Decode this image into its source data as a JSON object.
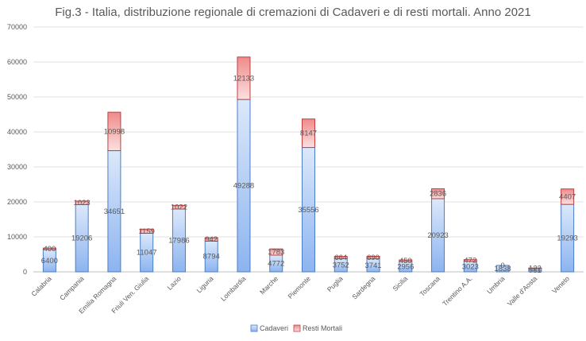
{
  "chart_data": {
    "type": "bar",
    "stacked": true,
    "title": "Fig.3 - Italia, distribuzione regionale di cremazioni di Cadaveri e di resti mortali. Anno 2021",
    "xlabel": "",
    "ylabel": "",
    "ylim": [
      0,
      70000
    ],
    "yticks": [
      0,
      10000,
      20000,
      30000,
      40000,
      50000,
      60000,
      70000
    ],
    "grid": true,
    "legend": "bottom-center",
    "categories": [
      "Calabria",
      "Campania",
      "Emilia Romagna",
      "Friuli Ven. Giulia",
      "Lazio",
      "Liguria",
      "Lombardia",
      "Marche",
      "Piemonte",
      "Puglia",
      "Sardegna",
      "Sicilia",
      "Toscana",
      "Trentino A.A.",
      "Umbria",
      "Valle d'Aosta",
      "Veneto"
    ],
    "series": [
      {
        "name": "Cadaveri",
        "values": [
          6400,
          19206,
          34651,
          11047,
          17986,
          8794,
          49288,
          4772,
          35556,
          3752,
          3741,
          2956,
          20923,
          3023,
          1838,
          981,
          19293
        ],
        "labels": [
          "6400",
          "19206",
          "34651",
          "11047",
          "17986",
          "8794",
          "49288",
          "4772",
          "35556",
          "3752",
          "3741",
          "2956",
          "20923",
          "3023",
          "1838",
          "981",
          "19293"
        ],
        "color_top": "#dce8fa",
        "color_bottom": "#8cb4f0",
        "stroke": "#4a7ec8"
      },
      {
        "name": "Resti Mortali",
        "values": [
          400,
          1023,
          10998,
          1159,
          1022,
          942,
          12133,
          1783,
          8147,
          664,
          690,
          450,
          2836,
          472,
          0,
          122,
          4407
        ],
        "labels": [
          "400",
          "1023",
          "10998",
          "1159",
          "1022",
          "942",
          "12133",
          "1783",
          "8147",
          "664",
          "690",
          "450",
          "2836",
          "472",
          "0",
          "122",
          "4407"
        ],
        "color_top": "#f08a8a",
        "color_bottom": "#fbe0e0",
        "stroke": "#c04040"
      }
    ]
  }
}
